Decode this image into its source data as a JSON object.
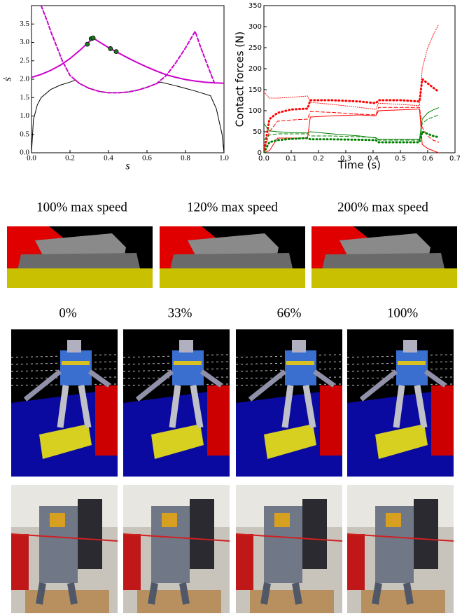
{
  "chart_data": [
    {
      "type": "line",
      "xlabel": "s",
      "ylabel": "ṡ",
      "xlim": [
        0,
        1
      ],
      "ylim": [
        0,
        4
      ],
      "xticks": [
        {
          "value": 0,
          "label": "0.0"
        },
        {
          "value": 0.2,
          "label": "0.2"
        },
        {
          "value": 0.4,
          "label": "0.4"
        },
        {
          "value": 0.6,
          "label": "0.6"
        },
        {
          "value": 0.8,
          "label": "0.8"
        },
        {
          "value": 1,
          "label": "1.0"
        }
      ],
      "yticks": [
        {
          "value": 0,
          "label": "0.0"
        },
        0.5,
        {
          "value": 1,
          "label": "1.0"
        },
        1.5,
        {
          "value": 2,
          "label": "2.0"
        },
        2.5,
        {
          "value": 3,
          "label": "3.0"
        },
        3.5
      ],
      "series": [
        {
          "color": "#000000",
          "dash": "solid",
          "width": 1,
          "x": [
            0,
            0.01,
            0.03,
            0.05,
            0.1,
            0.15,
            0.2,
            0.23,
            0.25,
            0.3,
            0.35,
            0.4,
            0.45,
            0.5,
            0.55,
            0.6,
            0.67,
            0.75,
            0.8,
            0.85,
            0.93,
            0.96,
            0.99,
            1
          ],
          "values": [
            0,
            0.9,
            1.3,
            1.5,
            1.72,
            1.84,
            1.92,
            1.98,
            1.88,
            1.75,
            1.67,
            1.63,
            1.63,
            1.65,
            1.7,
            1.78,
            1.92,
            1.82,
            1.75,
            1.68,
            1.55,
            1.2,
            0.5,
            0
          ]
        },
        {
          "color": "#cc00cc",
          "dash": "dashed",
          "width": 2,
          "x": [
            0.05,
            0.08,
            0.1,
            0.13,
            0.16,
            0.2,
            0.25,
            0.3,
            0.35,
            0.4,
            0.45,
            0.5,
            0.55,
            0.6,
            0.65,
            0.7,
            0.75,
            0.8,
            0.85,
            0.88,
            0.92,
            0.95
          ],
          "values": [
            4,
            3.6,
            3.3,
            2.9,
            2.5,
            2.1,
            1.88,
            1.75,
            1.67,
            1.63,
            1.63,
            1.65,
            1.7,
            1.78,
            1.88,
            2.1,
            2.45,
            2.85,
            3.3,
            2.85,
            2.3,
            1.9
          ]
        },
        {
          "color": "#cc00cc",
          "dash": "solid",
          "width": 2,
          "x": [
            0,
            0.05,
            0.1,
            0.15,
            0.2,
            0.25,
            0.3,
            0.32,
            0.35,
            0.4,
            0.45,
            0.5,
            0.55,
            0.6,
            0.65,
            0.7,
            0.75,
            0.8,
            0.85,
            0.9,
            0.95,
            1
          ],
          "values": [
            2.05,
            2.13,
            2.24,
            2.38,
            2.56,
            2.78,
            3.02,
            3.12,
            3.02,
            2.86,
            2.72,
            2.58,
            2.45,
            2.33,
            2.22,
            2.12,
            2.05,
            1.99,
            1.95,
            1.92,
            1.9,
            1.89
          ]
        },
        {
          "color": "#1f7a1f",
          "dash": "points",
          "width": 1,
          "x": [
            0.29,
            0.31,
            0.32,
            0.41,
            0.44
          ],
          "values": [
            2.95,
            3.1,
            3.12,
            2.83,
            2.75
          ]
        }
      ]
    },
    {
      "type": "line",
      "xlabel": "Time (s)",
      "ylabel": "Contact forces (N)",
      "xlim": [
        0,
        0.7
      ],
      "ylim": [
        0,
        350
      ],
      "xticks": [
        {
          "value": 0,
          "label": "0.0"
        },
        0.1,
        0.2,
        0.3,
        0.4,
        0.5,
        0.6,
        0.7
      ],
      "yticks": [
        0,
        50,
        100,
        150,
        200,
        250,
        300,
        350
      ],
      "series": [
        {
          "color": "#ff0000",
          "dash": "finedot",
          "width": 1,
          "x": [
            0,
            0.02,
            0.05,
            0.1,
            0.16,
            0.17,
            0.25,
            0.35,
            0.41,
            0.42,
            0.5,
            0.57,
            0.58,
            0.6,
            0.62,
            0.64
          ],
          "values": [
            145,
            130,
            130,
            132,
            135,
            120,
            115,
            108,
            103,
            118,
            115,
            112,
            200,
            250,
            280,
            305
          ]
        },
        {
          "color": "#ff0000",
          "dash": "dotted",
          "width": 3,
          "x": [
            0,
            0.02,
            0.05,
            0.1,
            0.16,
            0.17,
            0.25,
            0.35,
            0.41,
            0.42,
            0.5,
            0.57,
            0.58,
            0.6,
            0.62,
            0.64
          ],
          "values": [
            0,
            80,
            95,
            103,
            105,
            125,
            125,
            122,
            118,
            125,
            125,
            122,
            175,
            165,
            155,
            145
          ]
        },
        {
          "color": "#ff0000",
          "dash": "dashed",
          "width": 1,
          "x": [
            0,
            0.02,
            0.05,
            0.1,
            0.16,
            0.17,
            0.25,
            0.35,
            0.41,
            0.42,
            0.5,
            0.57,
            0.58,
            0.6,
            0.62,
            0.64
          ],
          "values": [
            0,
            50,
            75,
            78,
            80,
            98,
            96,
            92,
            90,
            108,
            108,
            108,
            60,
            40,
            30,
            25
          ]
        },
        {
          "color": "#ff0000",
          "dash": "solid",
          "width": 1,
          "x": [
            0,
            0.02,
            0.05,
            0.1,
            0.16,
            0.17,
            0.25,
            0.35,
            0.41,
            0.42,
            0.5,
            0.57,
            0.58,
            0.6,
            0.62,
            0.64
          ],
          "values": [
            0,
            5,
            35,
            35,
            35,
            85,
            88,
            90,
            88,
            100,
            102,
            104,
            20,
            10,
            5,
            0
          ]
        },
        {
          "color": "#008000",
          "dash": "solid",
          "width": 1,
          "x": [
            0,
            0.02,
            0.05,
            0.1,
            0.16,
            0.17,
            0.25,
            0.35,
            0.41,
            0.42,
            0.5,
            0.57,
            0.58,
            0.6,
            0.62,
            0.64
          ],
          "values": [
            70,
            52,
            50,
            48,
            47,
            50,
            45,
            40,
            35,
            32,
            32,
            32,
            80,
            95,
            102,
            107
          ]
        },
        {
          "color": "#008000",
          "dash": "dashed",
          "width": 1,
          "x": [
            0,
            0.02,
            0.05,
            0.1,
            0.16,
            0.17,
            0.25,
            0.35,
            0.41,
            0.42,
            0.5,
            0.57,
            0.58,
            0.6,
            0.62,
            0.64
          ],
          "values": [
            30,
            42,
            45,
            45,
            45,
            40,
            40,
            38,
            36,
            30,
            30,
            30,
            70,
            80,
            85,
            90
          ]
        },
        {
          "color": "#008000",
          "dash": "dotted",
          "width": 3,
          "x": [
            0,
            0.02,
            0.05,
            0.1,
            0.16,
            0.17,
            0.25,
            0.35,
            0.41,
            0.42,
            0.5,
            0.57,
            0.58,
            0.6,
            0.62,
            0.64
          ],
          "values": [
            0,
            25,
            30,
            33,
            35,
            32,
            32,
            31,
            30,
            25,
            25,
            25,
            50,
            45,
            40,
            37
          ]
        }
      ]
    }
  ],
  "captions": {
    "speed": [
      "100% max speed",
      "120% max speed",
      "200% max speed"
    ],
    "progress": [
      "0%",
      "33%",
      "66%",
      "100%"
    ]
  }
}
